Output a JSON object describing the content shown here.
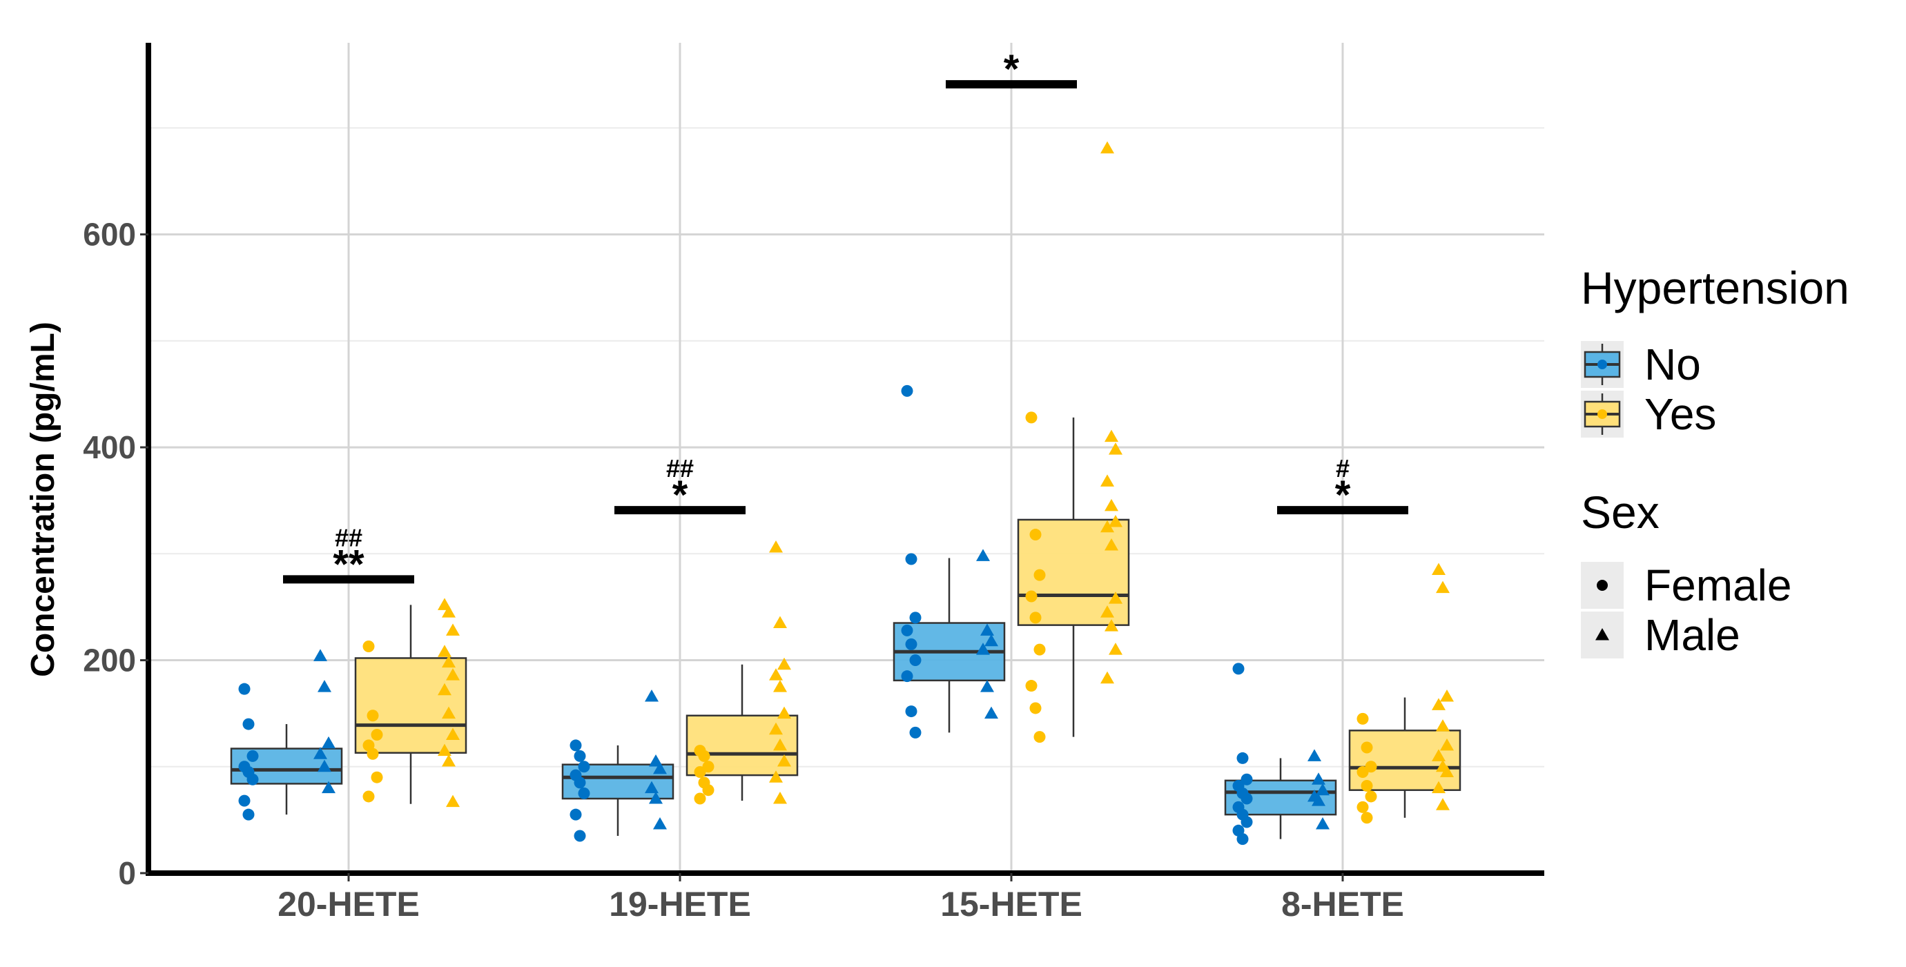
{
  "chart_data": {
    "type": "boxplot",
    "ylabel": "Concentration (pg/mL)",
    "xlabel": "",
    "ylim": [
      0,
      780
    ],
    "yticks": [
      0,
      200,
      400,
      600
    ],
    "grid": true,
    "categories": [
      "20-HETE",
      "19-HETE",
      "15-HETE",
      "8-HETE"
    ],
    "groups": [
      {
        "name": "No",
        "fill": "#5ab4e5",
        "point_color": "#0072c6"
      },
      {
        "name": "Yes",
        "fill": "#ffe07a",
        "point_color": "#ffc000"
      }
    ],
    "boxes": [
      {
        "category": "20-HETE",
        "group": "No",
        "whisker_low": 55,
        "q1": 84,
        "median": 97,
        "q3": 117,
        "whisker_high": 140,
        "female": [
          173,
          140,
          110,
          100,
          95,
          88,
          68,
          55
        ],
        "male": [
          204,
          175,
          122,
          112,
          100,
          80
        ]
      },
      {
        "category": "20-HETE",
        "group": "Yes",
        "whisker_low": 65,
        "q1": 113,
        "median": 139,
        "q3": 202,
        "whisker_high": 252,
        "female": [
          213,
          148,
          130,
          120,
          112,
          90,
          72
        ],
        "male": [
          252,
          245,
          228,
          208,
          198,
          186,
          172,
          150,
          130,
          115,
          105,
          67
        ]
      },
      {
        "category": "19-HETE",
        "group": "No",
        "whisker_low": 35,
        "q1": 70,
        "median": 90,
        "q3": 102,
        "whisker_high": 120,
        "female": [
          120,
          110,
          100,
          92,
          85,
          75,
          55,
          35
        ],
        "male": [
          166,
          105,
          98,
          80,
          70,
          46
        ]
      },
      {
        "category": "19-HETE",
        "group": "Yes",
        "whisker_low": 68,
        "q1": 92,
        "median": 112,
        "q3": 148,
        "whisker_high": 196,
        "female": [
          115,
          110,
          100,
          95,
          85,
          78,
          70
        ],
        "male": [
          306,
          235,
          196,
          186,
          175,
          150,
          135,
          120,
          105,
          90,
          70
        ]
      },
      {
        "category": "15-HETE",
        "group": "No",
        "whisker_low": 132,
        "q1": 181,
        "median": 208,
        "q3": 235,
        "whisker_high": 296,
        "female": [
          453,
          295,
          240,
          228,
          215,
          200,
          185,
          152,
          132
        ],
        "male": [
          298,
          228,
          218,
          210,
          175,
          150
        ]
      },
      {
        "category": "15-HETE",
        "group": "Yes",
        "whisker_low": 128,
        "q1": 233,
        "median": 261,
        "q3": 332,
        "whisker_high": 428,
        "female": [
          428,
          318,
          280,
          260,
          240,
          210,
          176,
          155,
          128
        ],
        "male": [
          681,
          410,
          398,
          368,
          345,
          330,
          325,
          308,
          258,
          245,
          232,
          210,
          183
        ]
      },
      {
        "category": "8-HETE",
        "group": "No",
        "whisker_low": 32,
        "q1": 55,
        "median": 76,
        "q3": 87,
        "whisker_high": 108,
        "female": [
          192,
          108,
          88,
          82,
          75,
          70,
          62,
          55,
          48,
          40,
          32
        ],
        "male": [
          110,
          88,
          78,
          72,
          68,
          46
        ]
      },
      {
        "category": "8-HETE",
        "group": "Yes",
        "whisker_low": 52,
        "q1": 78,
        "median": 99,
        "q3": 134,
        "whisker_high": 165,
        "female": [
          145,
          118,
          100,
          95,
          82,
          72,
          62,
          52
        ],
        "male": [
          285,
          268,
          166,
          158,
          138,
          120,
          110,
          100,
          95,
          80,
          64
        ]
      }
    ],
    "annotations": [
      {
        "category": "20-HETE",
        "y": 276,
        "stars": "**",
        "hash": "##"
      },
      {
        "category": "19-HETE",
        "y": 341,
        "stars": "*",
        "hash": "##"
      },
      {
        "category": "15-HETE",
        "y": 741,
        "stars": "*",
        "hash": ""
      },
      {
        "category": "8-HETE",
        "y": 341,
        "stars": "*",
        "hash": "#"
      }
    ],
    "legend": {
      "position": "right",
      "hypertension_title": "Hypertension",
      "hypertension_items": [
        "No",
        "Yes"
      ],
      "sex_title": "Sex",
      "sex_items": [
        "Female",
        "Male"
      ]
    }
  }
}
